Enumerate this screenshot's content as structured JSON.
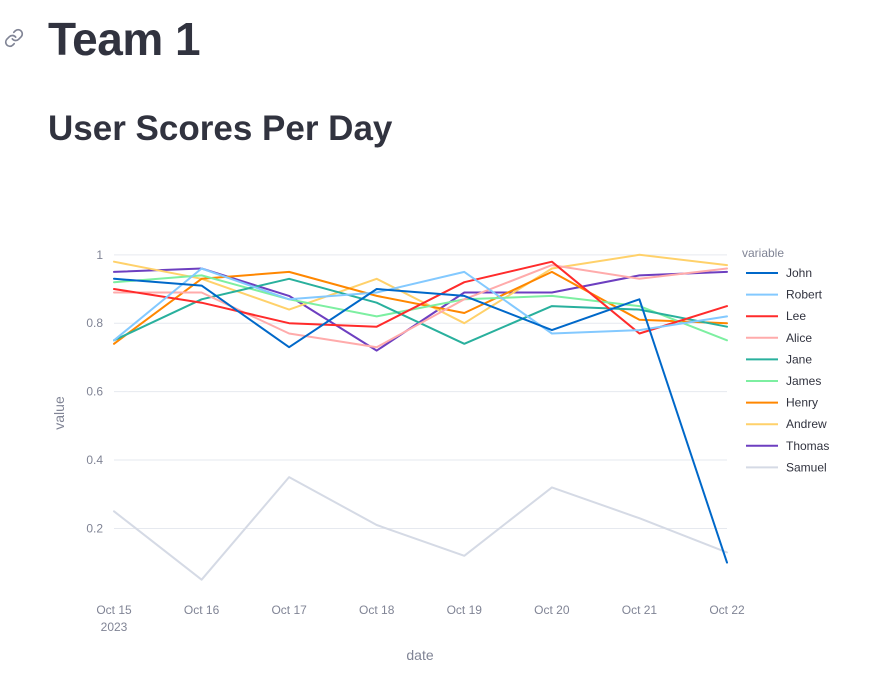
{
  "page": {
    "team_title": "Team 1",
    "chart_heading": "User Scores Per Day"
  },
  "icons": {
    "anchor": "link-icon"
  },
  "colors": {
    "heading": "#31333f",
    "grid": "#e6e9ef",
    "axis_text": "#808495"
  },
  "chart_data": {
    "type": "line",
    "x": [
      "Oct 15",
      "Oct 16",
      "Oct 17",
      "Oct 18",
      "Oct 19",
      "Oct 20",
      "Oct 21",
      "Oct 22"
    ],
    "x_year_label": "2023",
    "xlabel": "date",
    "ylabel": "value",
    "ylim": [
      0.02,
      1.02
    ],
    "yticks": [
      0.2,
      0.4,
      0.6,
      0.8,
      1
    ],
    "ytick_labels": [
      "0.2",
      "0.4",
      "0.6",
      "0.8",
      "1"
    ],
    "grid": true,
    "legend_title": "variable",
    "legend_position": "right",
    "series": [
      {
        "name": "John",
        "color": "#0068c9",
        "values": [
          0.93,
          0.91,
          0.73,
          0.9,
          0.88,
          0.78,
          0.87,
          0.1
        ]
      },
      {
        "name": "Robert",
        "color": "#83c9ff",
        "values": [
          0.75,
          0.96,
          0.87,
          0.89,
          0.95,
          0.77,
          0.78,
          0.82
        ]
      },
      {
        "name": "Lee",
        "color": "#ff2b2b",
        "values": [
          0.9,
          0.86,
          0.8,
          0.79,
          0.92,
          0.98,
          0.77,
          0.85
        ]
      },
      {
        "name": "Alice",
        "color": "#ffabab",
        "values": [
          0.89,
          0.89,
          0.77,
          0.73,
          0.87,
          0.97,
          0.93,
          0.96
        ]
      },
      {
        "name": "Jane",
        "color": "#29b09d",
        "values": [
          0.75,
          0.87,
          0.93,
          0.86,
          0.74,
          0.85,
          0.84,
          0.79
        ]
      },
      {
        "name": "James",
        "color": "#7defa1",
        "values": [
          0.92,
          0.94,
          0.87,
          0.82,
          0.87,
          0.88,
          0.85,
          0.75
        ]
      },
      {
        "name": "Henry",
        "color": "#ff8700",
        "values": [
          0.74,
          0.93,
          0.95,
          0.88,
          0.83,
          0.95,
          0.81,
          0.8
        ]
      },
      {
        "name": "Andrew",
        "color": "#ffd16a",
        "values": [
          0.98,
          0.93,
          0.84,
          0.93,
          0.8,
          0.96,
          1.0,
          0.97
        ]
      },
      {
        "name": "Thomas",
        "color": "#6d3fc0",
        "values": [
          0.95,
          0.96,
          0.88,
          0.72,
          0.89,
          0.89,
          0.94,
          0.95
        ]
      },
      {
        "name": "Samuel",
        "color": "#d5dae5",
        "values": [
          0.25,
          0.05,
          0.35,
          0.21,
          0.12,
          0.32,
          0.23,
          0.13
        ]
      }
    ]
  }
}
